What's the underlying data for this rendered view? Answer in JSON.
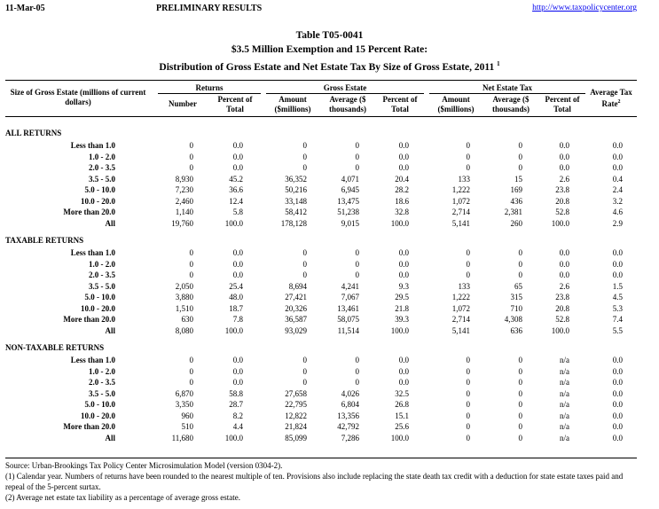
{
  "header": {
    "date": "11-Mar-05",
    "status": "PRELIMINARY RESULTS",
    "url": "http://www.taxpolicycenter.org"
  },
  "titles": {
    "line1": "Table T05-0041",
    "line2": "$3.5 Million Exemption and 15 Percent Rate:",
    "line3": "Distribution of Gross Estate and Net Estate Tax By Size of Gross Estate, 2011",
    "line3_note": "1"
  },
  "columns": {
    "size_label": "Size of Gross Estate (millions of current dollars)",
    "returns_group": "Returns",
    "gross_group": "Gross Estate",
    "net_group": "Net Estate Tax",
    "number": "Number",
    "pct_total": "Percent of Total",
    "amount": "Amount ($millions)",
    "average": "Average ($ thousands)",
    "avg_tax_rate": "Average Tax Rate",
    "avg_tax_rate_note": "2"
  },
  "sections": [
    {
      "title": "ALL RETURNS",
      "rows": [
        [
          "Less than 1.0",
          "0",
          "0.0",
          "0",
          "0",
          "0.0",
          "0",
          "0",
          "0.0",
          "0.0"
        ],
        [
          "1.0 - 2.0",
          "0",
          "0.0",
          "0",
          "0",
          "0.0",
          "0",
          "0",
          "0.0",
          "0.0"
        ],
        [
          "2.0 - 3.5",
          "0",
          "0.0",
          "0",
          "0",
          "0.0",
          "0",
          "0",
          "0.0",
          "0.0"
        ],
        [
          "3.5 - 5.0",
          "8,930",
          "45.2",
          "36,352",
          "4,071",
          "20.4",
          "133",
          "15",
          "2.6",
          "0.4"
        ],
        [
          "5.0 - 10.0",
          "7,230",
          "36.6",
          "50,216",
          "6,945",
          "28.2",
          "1,222",
          "169",
          "23.8",
          "2.4"
        ],
        [
          "10.0 - 20.0",
          "2,460",
          "12.4",
          "33,148",
          "13,475",
          "18.6",
          "1,072",
          "436",
          "20.8",
          "3.2"
        ],
        [
          "More than 20.0",
          "1,140",
          "5.8",
          "58,412",
          "51,238",
          "32.8",
          "2,714",
          "2,381",
          "52.8",
          "4.6"
        ],
        [
          "All",
          "19,760",
          "100.0",
          "178,128",
          "9,015",
          "100.0",
          "5,141",
          "260",
          "100.0",
          "2.9"
        ]
      ]
    },
    {
      "title": "TAXABLE RETURNS",
      "rows": [
        [
          "Less than 1.0",
          "0",
          "0.0",
          "0",
          "0",
          "0.0",
          "0",
          "0",
          "0.0",
          "0.0"
        ],
        [
          "1.0 - 2.0",
          "0",
          "0.0",
          "0",
          "0",
          "0.0",
          "0",
          "0",
          "0.0",
          "0.0"
        ],
        [
          "2.0 - 3.5",
          "0",
          "0.0",
          "0",
          "0",
          "0.0",
          "0",
          "0",
          "0.0",
          "0.0"
        ],
        [
          "3.5 - 5.0",
          "2,050",
          "25.4",
          "8,694",
          "4,241",
          "9.3",
          "133",
          "65",
          "2.6",
          "1.5"
        ],
        [
          "5.0 - 10.0",
          "3,880",
          "48.0",
          "27,421",
          "7,067",
          "29.5",
          "1,222",
          "315",
          "23.8",
          "4.5"
        ],
        [
          "10.0 - 20.0",
          "1,510",
          "18.7",
          "20,326",
          "13,461",
          "21.8",
          "1,072",
          "710",
          "20.8",
          "5.3"
        ],
        [
          "More than 20.0",
          "630",
          "7.8",
          "36,587",
          "58,075",
          "39.3",
          "2,714",
          "4,308",
          "52.8",
          "7.4"
        ],
        [
          "All",
          "8,080",
          "100.0",
          "93,029",
          "11,514",
          "100.0",
          "5,141",
          "636",
          "100.0",
          "5.5"
        ]
      ]
    },
    {
      "title": "NON-TAXABLE RETURNS",
      "rows": [
        [
          "Less than 1.0",
          "0",
          "0.0",
          "0",
          "0",
          "0.0",
          "0",
          "0",
          "n/a",
          "0.0"
        ],
        [
          "1.0 - 2.0",
          "0",
          "0.0",
          "0",
          "0",
          "0.0",
          "0",
          "0",
          "n/a",
          "0.0"
        ],
        [
          "2.0 - 3.5",
          "0",
          "0.0",
          "0",
          "0",
          "0.0",
          "0",
          "0",
          "n/a",
          "0.0"
        ],
        [
          "3.5 - 5.0",
          "6,870",
          "58.8",
          "27,658",
          "4,026",
          "32.5",
          "0",
          "0",
          "n/a",
          "0.0"
        ],
        [
          "5.0 - 10.0",
          "3,350",
          "28.7",
          "22,795",
          "6,804",
          "26.8",
          "0",
          "0",
          "n/a",
          "0.0"
        ],
        [
          "10.0 - 20.0",
          "960",
          "8.2",
          "12,822",
          "13,356",
          "15.1",
          "0",
          "0",
          "n/a",
          "0.0"
        ],
        [
          "More than 20.0",
          "510",
          "4.4",
          "21,824",
          "42,792",
          "25.6",
          "0",
          "0",
          "n/a",
          "0.0"
        ],
        [
          "All",
          "11,680",
          "100.0",
          "85,099",
          "7,286",
          "100.0",
          "0",
          "0",
          "n/a",
          "0.0"
        ]
      ]
    }
  ],
  "footnotes": {
    "source": "Source: Urban-Brookings Tax Policy Center Microsimulation Model (version 0304-2).",
    "note1": "(1) Calendar year. Numbers of returns have been rounded to the nearest multiple of ten. Provisions also include replacing the state death tax credit with a deduction for state estate taxes paid and repeal of the 5-percent surtax.",
    "note2": "(2) Average net estate tax liability as a percentage of average gross estate."
  }
}
